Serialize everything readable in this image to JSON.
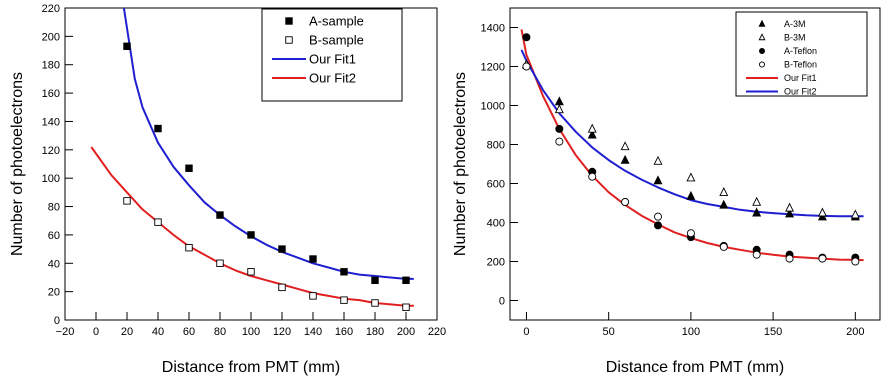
{
  "chart_data": [
    {
      "type": "scatter",
      "xlabel": "Distance from PMT (mm)",
      "ylabel": "Number of photoelectrons",
      "xlim": [
        -20,
        220
      ],
      "ylim": [
        0,
        220
      ],
      "x_ticks": [
        -20,
        0,
        20,
        40,
        60,
        80,
        100,
        120,
        140,
        160,
        180,
        200,
        220
      ],
      "y_ticks": [
        0,
        20,
        40,
        60,
        80,
        100,
        120,
        140,
        160,
        180,
        200,
        220
      ],
      "legend_position": "top-right",
      "series": [
        {
          "name": "A-sample",
          "marker": "filled-square",
          "color": "#000000",
          "x": [
            20,
            40,
            60,
            80,
            100,
            120,
            140,
            160,
            180,
            200
          ],
          "y": [
            193,
            135,
            107,
            74,
            60,
            50,
            43,
            34,
            28,
            28
          ]
        },
        {
          "name": "B-sample",
          "marker": "open-square",
          "color": "#000000",
          "x": [
            20,
            40,
            60,
            80,
            100,
            120,
            140,
            160,
            180,
            200
          ],
          "y": [
            84,
            69,
            51,
            40,
            34,
            23,
            17,
            14,
            12,
            9
          ]
        },
        {
          "name": "Our Fit1",
          "type": "line",
          "color": "#1f1fd0",
          "x": [
            18,
            25,
            30,
            40,
            50,
            60,
            70,
            80,
            90,
            100,
            110,
            120,
            130,
            140,
            150,
            160,
            170,
            180,
            190,
            200,
            205
          ],
          "y": [
            220,
            170,
            150,
            125,
            108,
            95,
            83,
            74,
            66,
            59,
            53,
            48,
            44,
            40,
            37,
            34,
            32,
            31,
            30,
            29,
            29
          ]
        },
        {
          "name": "Our Fit2",
          "type": "line",
          "color": "#e02020",
          "x": [
            -3,
            10,
            20,
            30,
            40,
            50,
            60,
            70,
            80,
            90,
            100,
            110,
            120,
            130,
            140,
            150,
            160,
            170,
            180,
            190,
            200,
            205
          ],
          "y": [
            122,
            102,
            90,
            78,
            69,
            60,
            52,
            46,
            40,
            35,
            31,
            28,
            25,
            22,
            19,
            17,
            15,
            14,
            12,
            11,
            10,
            10
          ]
        }
      ]
    },
    {
      "type": "scatter",
      "xlabel": "Distance from PMT (mm)",
      "ylabel": "Number of photoelectrons",
      "xlim": [
        -10,
        215
      ],
      "ylim": [
        -100,
        1500
      ],
      "x_ticks": [
        0,
        50,
        100,
        150,
        200
      ],
      "y_ticks": [
        0,
        200,
        400,
        600,
        800,
        1000,
        1200,
        1400
      ],
      "legend_position": "top-right",
      "series": [
        {
          "name": "A-3M",
          "marker": "filled-triangle",
          "color": "#000000",
          "x": [
            0,
            20,
            40,
            60,
            80,
            100,
            120,
            140,
            160,
            180,
            200
          ],
          "y": [
            1210,
            1020,
            850,
            720,
            615,
            535,
            490,
            450,
            445,
            430,
            430
          ]
        },
        {
          "name": "B-3M",
          "marker": "open-triangle",
          "color": "#000000",
          "x": [
            0,
            20,
            40,
            60,
            80,
            100,
            120,
            140,
            160,
            180,
            200
          ],
          "y": [
            1210,
            980,
            880,
            790,
            715,
            630,
            555,
            505,
            475,
            450,
            440
          ]
        },
        {
          "name": "A-Teflon",
          "marker": "filled-circle",
          "color": "#000000",
          "x": [
            0,
            20,
            40,
            60,
            80,
            100,
            120,
            140,
            160,
            180,
            200
          ],
          "y": [
            1350,
            880,
            660,
            505,
            385,
            325,
            280,
            260,
            235,
            220,
            220
          ]
        },
        {
          "name": "B-Teflon",
          "marker": "open-circle",
          "color": "#000000",
          "x": [
            0,
            20,
            40,
            60,
            80,
            100,
            120,
            140,
            160,
            180,
            200
          ],
          "y": [
            1200,
            815,
            635,
            505,
            430,
            345,
            275,
            235,
            215,
            215,
            200
          ]
        },
        {
          "name": "Our Fit1",
          "type": "line",
          "color": "#e02020",
          "x": [
            -3,
            0,
            10,
            20,
            30,
            40,
            50,
            60,
            70,
            80,
            90,
            100,
            110,
            120,
            130,
            140,
            150,
            160,
            170,
            180,
            190,
            200,
            205
          ],
          "y": [
            1390,
            1260,
            1050,
            880,
            745,
            640,
            555,
            490,
            435,
            390,
            350,
            320,
            295,
            275,
            260,
            245,
            235,
            225,
            220,
            215,
            210,
            208,
            207
          ]
        },
        {
          "name": "Our Fit2",
          "type": "line",
          "color": "#1f1fd0",
          "x": [
            -3,
            0,
            10,
            20,
            30,
            40,
            50,
            60,
            70,
            80,
            90,
            100,
            110,
            120,
            130,
            140,
            150,
            160,
            170,
            180,
            190,
            200,
            205
          ],
          "y": [
            1285,
            1230,
            1080,
            960,
            865,
            785,
            720,
            665,
            620,
            580,
            545,
            515,
            495,
            480,
            465,
            455,
            448,
            442,
            437,
            434,
            432,
            432,
            432
          ]
        }
      ]
    }
  ]
}
